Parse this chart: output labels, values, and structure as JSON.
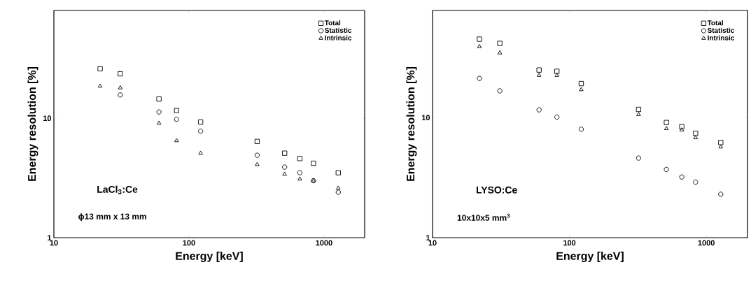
{
  "chart_data": [
    {
      "type": "scatter",
      "xlabel": "Energy [keV]",
      "ylabel": "Energy resolution [%]",
      "log": "xy",
      "legend": "top right",
      "grid": false,
      "x": [
        22,
        31,
        60,
        81,
        122,
        320,
        511,
        662,
        835,
        1275
      ],
      "xlim": [
        10,
        2000
      ],
      "ylim": [
        1,
        80
      ],
      "xticks": [
        10,
        100,
        1000
      ],
      "yticks": [
        1,
        10
      ],
      "annotations": [
        "LaCl$_{3}$:Ce",
        "ϕ13 mm x 13 mm"
      ],
      "series": [
        {
          "name": "Total",
          "color": "#000000",
          "marker": "square",
          "values": [
            26,
            23.6,
            14.5,
            11.6,
            9.3,
            6.4,
            5.1,
            4.6,
            4.2,
            3.5
          ]
        },
        {
          "name": "Statistic",
          "color": "#000000",
          "marker": "circle",
          "values": [
            null,
            15.7,
            11.3,
            9.8,
            7.8,
            4.9,
            3.9,
            3.5,
            3.0,
            2.4
          ]
        },
        {
          "name": "Intrinsic",
          "color": "#000000",
          "marker": "triangle",
          "values": [
            18.6,
            18,
            9.1,
            6.5,
            5.1,
            4.1,
            3.4,
            3.1,
            3.0,
            2.6
          ]
        }
      ]
    },
    {
      "type": "scatter",
      "xlabel": "Energy [keV]",
      "ylabel": "Energy resolution [%]",
      "log": "xy",
      "legend": "top right",
      "grid": false,
      "x": [
        22,
        31,
        60,
        81,
        122,
        320,
        511,
        662,
        835,
        1275
      ],
      "xlim": [
        10,
        2000
      ],
      "ylim": [
        1,
        78
      ],
      "xticks": [
        10,
        100,
        1000
      ],
      "yticks": [
        1,
        10
      ],
      "annotations": [
        "LYSO:Ce",
        "10x10x5 mm$^{3}$"
      ],
      "series": [
        {
          "name": "Total",
          "color": "#000000",
          "marker": "square",
          "values": [
            45,
            41.5,
            24.9,
            24.3,
            19.2,
            11.7,
            9.1,
            8.4,
            7.4,
            6.2
          ]
        },
        {
          "name": "Statistic",
          "color": "#000000",
          "marker": "circle",
          "values": [
            21.2,
            16.7,
            11.6,
            10.1,
            8.0,
            4.6,
            3.7,
            3.2,
            2.9,
            2.3
          ]
        },
        {
          "name": "Intrinsic",
          "color": "#000000",
          "marker": "triangle",
          "values": [
            39,
            34.6,
            22.5,
            22.5,
            17.1,
            10.6,
            8.1,
            7.9,
            6.8,
            5.7
          ]
        }
      ]
    }
  ]
}
